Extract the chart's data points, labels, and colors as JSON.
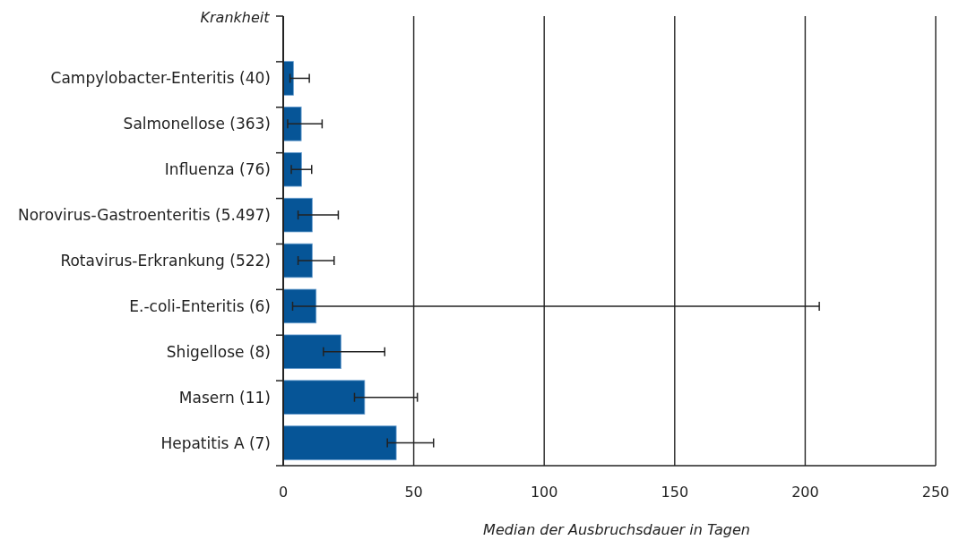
{
  "chart_data": {
    "type": "bar",
    "orientation": "horizontal",
    "xlabel": "Median der Ausbruchsdauer in Tagen",
    "ylabel": "Krankheit",
    "categories": [
      "Campylobacter-Enteritis (40)",
      "Salmonellose (363)",
      "Influenza (76)",
      "Norovirus-Gastroenteritis (5.497)",
      "Rotavirus-Erkrankung (522)",
      "E.-coli-Enteritis (6)",
      "Shigellose (8)",
      "Masern (11)",
      "Hepatitis A (7)"
    ],
    "values": [
      3.9,
      6.9,
      7,
      11.1,
      11.1,
      12.6,
      22.1,
      31.2,
      43.3
    ],
    "errors": [
      [
        2.6,
        10
      ],
      [
        1.7,
        14.9
      ],
      [
        3.1,
        10.9
      ],
      [
        5.7,
        21.1
      ],
      [
        5.7,
        19.5
      ],
      [
        3.6,
        205.4
      ],
      [
        15.4,
        38.9
      ],
      [
        27.3,
        51.4
      ],
      [
        39.9,
        57.6
      ]
    ],
    "color": "#065597",
    "xlim": [
      0,
      250
    ],
    "xticks": [
      0,
      50,
      100,
      150,
      200,
      250
    ],
    "grid": "x"
  }
}
